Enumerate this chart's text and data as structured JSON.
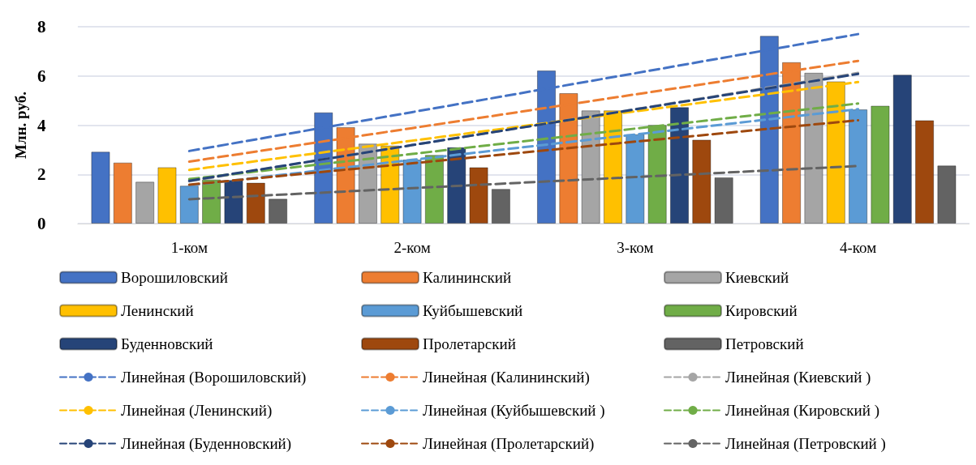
{
  "chart_data": {
    "type": "bar",
    "ylabel": "Млн. руб.",
    "categories": [
      "1-ком",
      "2-ком",
      "3-ком",
      "4-ком"
    ],
    "ylim": [
      0,
      8
    ],
    "yticks": [
      0,
      2,
      4,
      6,
      8
    ],
    "grid": "y",
    "legend": "bottom",
    "series": [
      {
        "name": "Ворошиловский",
        "color": "#4472c4",
        "values": [
          2.92,
          4.52,
          6.22,
          7.63
        ]
      },
      {
        "name": "Калининский",
        "color": "#ed7d31",
        "values": [
          2.48,
          3.92,
          5.3,
          6.56
        ]
      },
      {
        "name": "Киевский",
        "color": "#a5a5a5",
        "values": [
          1.7,
          3.25,
          4.6,
          6.13
        ]
      },
      {
        "name": "Ленинский",
        "color": "#ffc000",
        "values": [
          2.29,
          3.17,
          4.6,
          5.78
        ]
      },
      {
        "name": "Куйбышевский",
        "color": "#5b9bd5",
        "values": [
          1.54,
          2.6,
          3.63,
          4.64
        ]
      },
      {
        "name": "Кировский",
        "color": "#70ad47",
        "values": [
          1.79,
          2.79,
          4.01,
          4.79
        ]
      },
      {
        "name": "Буденновский",
        "color": "#264478",
        "values": [
          1.77,
          3.1,
          4.73,
          6.05
        ]
      },
      {
        "name": "Пролетарский",
        "color": "#9e480e",
        "values": [
          1.66,
          2.29,
          3.41,
          4.2
        ]
      },
      {
        "name": "Петровский",
        "color": "#636363",
        "values": [
          1.01,
          1.41,
          1.88,
          2.36
        ]
      },
      {
        "name": "Линейная (Ворошиловский)",
        "type": "line",
        "line_style": "dashed",
        "marker": "none",
        "color": "#4472c4",
        "values": [
          2.95,
          4.53,
          6.11,
          7.7
        ]
      },
      {
        "name": "Линейная (Калининский)",
        "type": "line",
        "line_style": "dashed",
        "marker": "none",
        "color": "#ed7d31",
        "values": [
          2.52,
          3.88,
          5.25,
          6.61
        ]
      },
      {
        "name": "Линейная (Киевский )",
        "type": "line",
        "line_style": "dashed",
        "marker": "none",
        "color": "#a5a5a5",
        "values": [
          1.72,
          3.19,
          4.65,
          6.12
        ]
      },
      {
        "name": "Линейная (Ленинский)",
        "type": "line",
        "line_style": "dashed",
        "marker": "none",
        "color": "#ffc000",
        "values": [
          2.18,
          3.37,
          4.56,
          5.75
        ]
      },
      {
        "name": "Линейная (Куйбышевский )",
        "type": "line",
        "line_style": "dashed",
        "marker": "none",
        "color": "#5b9bd5",
        "values": [
          1.55,
          2.59,
          3.62,
          4.65
        ]
      },
      {
        "name": "Линейная (Кировский )",
        "type": "line",
        "line_style": "dashed",
        "marker": "none",
        "color": "#70ad47",
        "values": [
          1.81,
          2.83,
          3.86,
          4.88
        ]
      },
      {
        "name": "Линейная (Буденновский)",
        "type": "line",
        "line_style": "dashed",
        "marker": "none",
        "color": "#264478",
        "values": [
          1.74,
          3.19,
          4.64,
          6.08
        ]
      },
      {
        "name": "Линейная (Пролетарский)",
        "type": "line",
        "line_style": "dashed",
        "marker": "none",
        "color": "#9e480e",
        "values": [
          1.58,
          2.45,
          3.33,
          4.2
        ]
      },
      {
        "name": "Линейная (Петровский )",
        "type": "line",
        "line_style": "dashed",
        "marker": "none",
        "color": "#636363",
        "values": [
          0.99,
          1.44,
          1.89,
          2.34
        ]
      }
    ]
  }
}
